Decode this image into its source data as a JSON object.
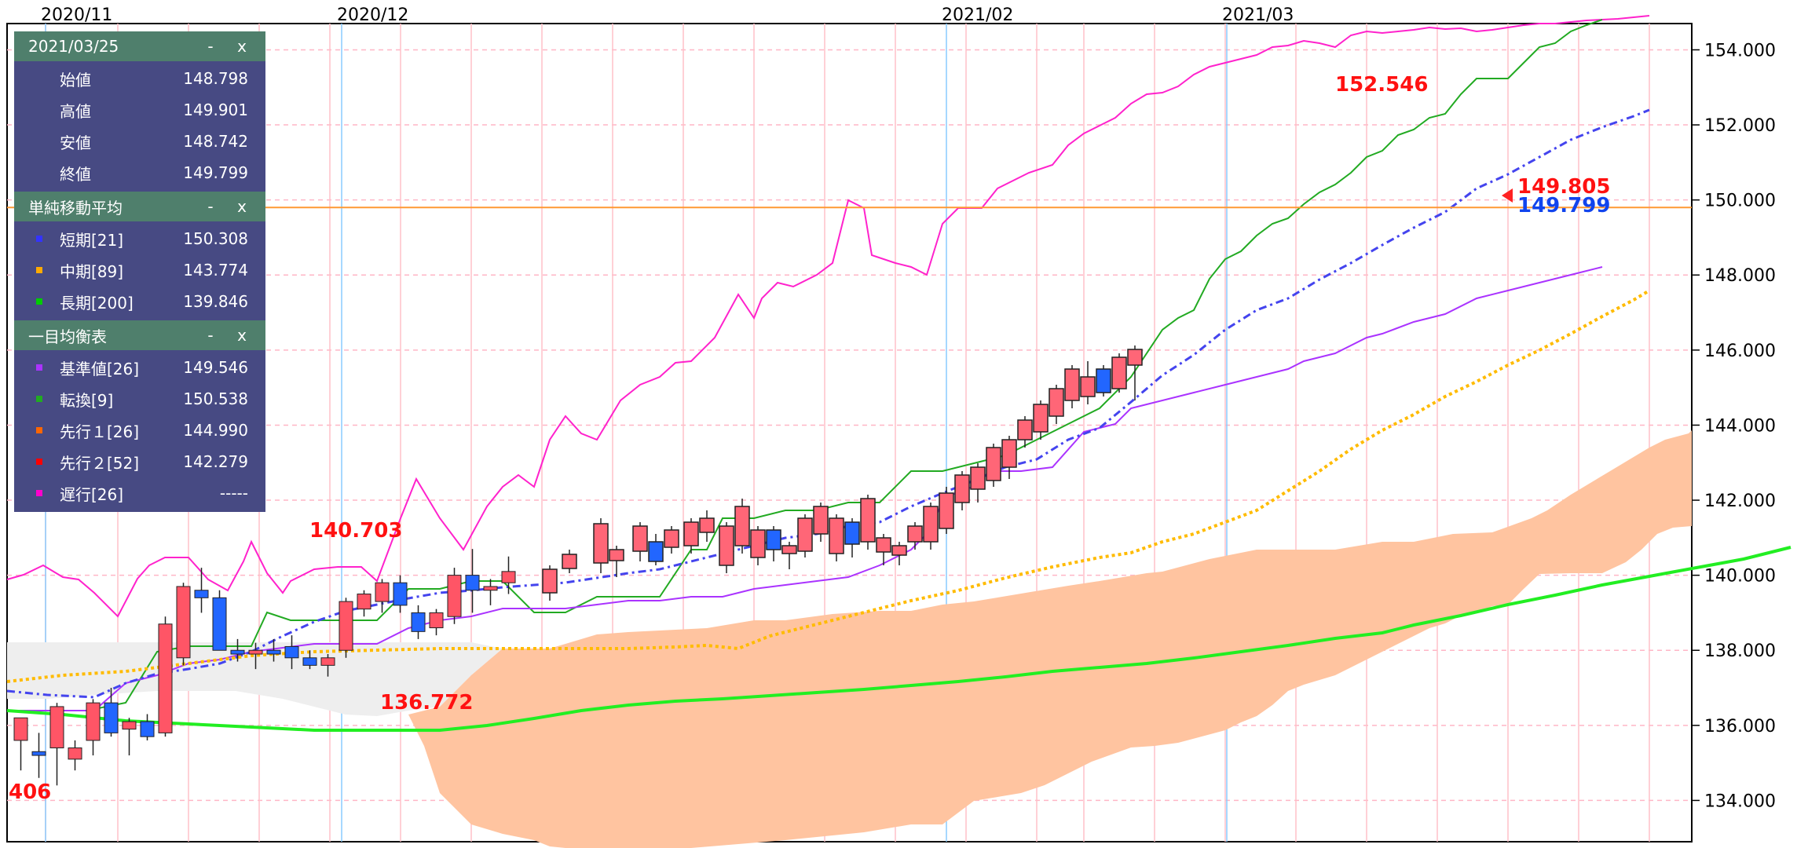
{
  "window": {
    "date_header": "2021/03/25"
  },
  "panels": [
    {
      "title": "2021/03/25",
      "rows": [
        {
          "label": "始値",
          "value": "148.798"
        },
        {
          "label": "高値",
          "value": "149.901"
        },
        {
          "label": "安値",
          "value": "148.742"
        },
        {
          "label": "終値",
          "value": "149.799"
        }
      ]
    },
    {
      "title": "単純移動平均",
      "rows": [
        {
          "label": "短期[21]",
          "value": "150.308",
          "color": "#3333ff"
        },
        {
          "label": "中期[89]",
          "value": "143.774",
          "color": "#ffaa00"
        },
        {
          "label": "長期[200]",
          "value": "139.846",
          "color": "#00cc00"
        }
      ]
    },
    {
      "title": "一目均衡表",
      "rows": [
        {
          "label": "基準値[26]",
          "value": "149.546",
          "color": "#aa33ff"
        },
        {
          "label": "転換[9]",
          "value": "150.538",
          "color": "#22aa22"
        },
        {
          "label": "先行１[26]",
          "value": "144.990",
          "color": "#ff6600"
        },
        {
          "label": "先行２[52]",
          "value": "142.279",
          "color": "#ff0000"
        },
        {
          "label": "遅行[26]",
          "value": "-----",
          "color": "#ff00cc"
        }
      ]
    }
  ],
  "panel_controls": {
    "minimize": "-",
    "close": "x"
  },
  "chart_data": {
    "type": "candlestick",
    "y_ticks": [
      "154.000",
      "152.000",
      "150.000",
      "148.000",
      "146.000",
      "144.000",
      "142.000",
      "140.000",
      "138.000",
      "136.000",
      "134.000"
    ],
    "ylim": [
      132.9,
      154.7
    ],
    "x_month_labels": [
      {
        "label": "2020/11",
        "index": 1
      },
      {
        "label": "2020/12",
        "index": 12
      },
      {
        "label": "2021/02",
        "index": 33
      },
      {
        "label": "2021/03",
        "index": 43
      }
    ],
    "annotations": {
      "high_label": "152.546",
      "low_label": "136.772",
      "left_high_label": "140.703",
      "left_cut_label": "406",
      "price_red": "149.805",
      "price_blue": "149.799"
    },
    "current_price": 149.8,
    "candles": [
      {
        "o": 135.6,
        "h": 136.1,
        "l": 134.8,
        "c": 136.2
      },
      {
        "o": 135.3,
        "h": 135.8,
        "l": 134.6,
        "c": 135.2
      },
      {
        "o": 135.4,
        "h": 136.6,
        "l": 134.4,
        "c": 136.5
      },
      {
        "o": 135.1,
        "h": 135.6,
        "l": 134.8,
        "c": 135.4
      },
      {
        "o": 135.6,
        "h": 136.7,
        "l": 135.2,
        "c": 136.6
      },
      {
        "o": 136.6,
        "h": 137.0,
        "l": 135.7,
        "c": 135.8
      },
      {
        "o": 135.9,
        "h": 136.2,
        "l": 135.2,
        "c": 136.1
      },
      {
        "o": 136.1,
        "h": 136.3,
        "l": 135.6,
        "c": 135.7
      },
      {
        "o": 135.8,
        "h": 138.9,
        "l": 135.7,
        "c": 138.7
      },
      {
        "o": 137.8,
        "h": 139.8,
        "l": 137.6,
        "c": 139.7
      },
      {
        "o": 139.6,
        "h": 140.2,
        "l": 139.0,
        "c": 139.4
      },
      {
        "o": 139.4,
        "h": 139.6,
        "l": 138.0,
        "c": 138.0
      },
      {
        "o": 138.0,
        "h": 138.3,
        "l": 137.7,
        "c": 137.9
      },
      {
        "o": 137.9,
        "h": 138.2,
        "l": 137.5,
        "c": 138.0
      },
      {
        "o": 138.0,
        "h": 138.3,
        "l": 137.7,
        "c": 137.9
      },
      {
        "o": 138.1,
        "h": 138.4,
        "l": 137.5,
        "c": 137.8
      },
      {
        "o": 137.8,
        "h": 138.0,
        "l": 137.5,
        "c": 137.6
      },
      {
        "o": 137.6,
        "h": 137.9,
        "l": 137.3,
        "c": 137.8
      },
      {
        "o": 138.0,
        "h": 139.4,
        "l": 137.8,
        "c": 139.3
      },
      {
        "o": 139.1,
        "h": 139.6,
        "l": 138.9,
        "c": 139.5
      },
      {
        "o": 139.3,
        "h": 139.9,
        "l": 139.0,
        "c": 139.8
      },
      {
        "o": 139.8,
        "h": 140.0,
        "l": 139.0,
        "c": 139.2
      },
      {
        "o": 139.0,
        "h": 139.2,
        "l": 138.3,
        "c": 138.5
      },
      {
        "o": 138.6,
        "h": 139.1,
        "l": 138.4,
        "c": 139.0
      },
      {
        "o": 138.9,
        "h": 140.2,
        "l": 138.7,
        "c": 140.0
      },
      {
        "o": 140.0,
        "h": 140.7,
        "l": 139.0,
        "c": 139.6
      },
      {
        "o": 139.6,
        "h": 139.9,
        "l": 139.2,
        "c": 139.7
      },
      {
        "o": 139.8,
        "h": 140.5,
        "l": 139.5,
        "c": 140.1
      }
    ],
    "series": [
      {
        "name": "短期[21]",
        "color": "#4444ee",
        "values": [
          136.7,
          136.6,
          136.5,
          136.5,
          136.4,
          136.3,
          136.4,
          136.5,
          136.8,
          137.2,
          137.5,
          137.6,
          137.7,
          137.9,
          138.0,
          138.2
        ]
      },
      {
        "name": "中期[89]",
        "color": "#ffbb00",
        "values": [
          136.9,
          137.0,
          137.1,
          137.2,
          137.3,
          137.4,
          137.5,
          137.6,
          137.7,
          137.8,
          137.9,
          138.0,
          138.1,
          138.2,
          138.3,
          138.4
        ]
      },
      {
        "name": "長期[200]",
        "color": "#22dd22",
        "values": [
          136.1,
          136.0,
          135.9,
          135.9,
          135.8,
          135.7,
          135.7,
          135.6,
          135.6,
          135.6,
          135.6,
          135.7,
          135.8,
          136.0,
          136.2,
          136.4
        ]
      }
    ]
  }
}
